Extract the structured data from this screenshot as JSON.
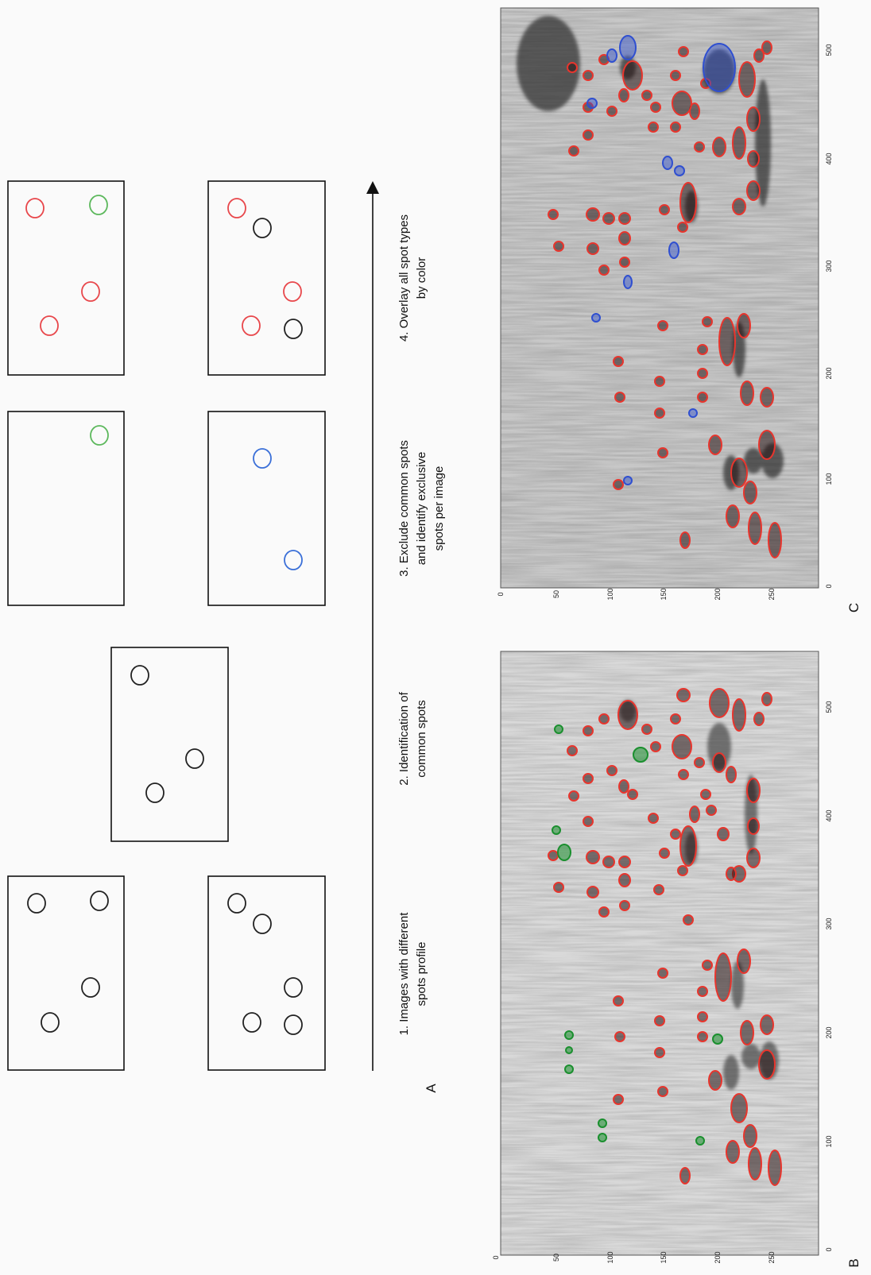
{
  "panel_labels": {
    "a": "A",
    "b": "B",
    "c": "C"
  },
  "steps": [
    {
      "lines": [
        "1. Images with different",
        "spots profile"
      ]
    },
    {
      "lines": [
        "2. Identification of",
        "common spots"
      ]
    },
    {
      "lines": [
        "3. Exclude common spots",
        "and identify exclusive",
        "spots per image"
      ]
    },
    {
      "lines": [
        "4. Overlay all spot types",
        "by color"
      ]
    }
  ],
  "colors": {
    "common": "#e8474b",
    "exclusive_image1": "#5cb85c",
    "exclusive_image2": "#3a6fd8",
    "neutral": "#222222",
    "gel_outline_common": "#e8352d",
    "gel_outline_green": "#1a8f2e",
    "gel_outline_blue": "#2f4fd0"
  },
  "gel_axes": {
    "vertical_ticks": [
      "0",
      "50",
      "100",
      "150",
      "200",
      "250"
    ],
    "horizontal_ticks": [
      "0",
      "100",
      "200",
      "300",
      "400",
      "500"
    ]
  },
  "icons": [
    "arrow-right-icon"
  ]
}
